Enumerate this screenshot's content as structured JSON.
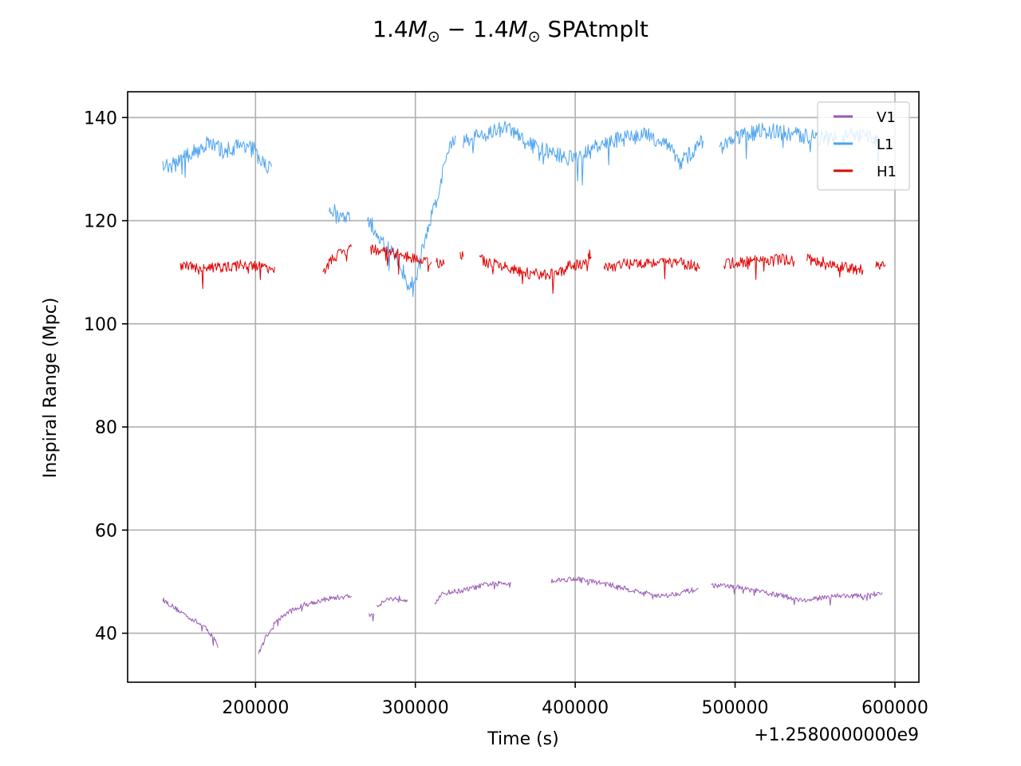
{
  "chart_data": {
    "type": "line",
    "title": {
      "lead": "1.4",
      "m1": "M",
      "sun1": "⊙",
      "dash": " − 1.4",
      "m2": "M",
      "sun2": "⊙",
      "suffix": " SPAtmplt"
    },
    "xlabel": "Time (s)",
    "ylabel": "Inspiral Range (Mpc)",
    "x_offset_label": "+1.2580000000e9",
    "xlim": [
      120000,
      615000
    ],
    "ylim": [
      30.5,
      145
    ],
    "x_ticks": [
      200000,
      300000,
      400000,
      500000,
      600000
    ],
    "x_tick_labels": [
      "200000",
      "300000",
      "400000",
      "500000",
      "600000"
    ],
    "y_ticks": [
      40,
      60,
      80,
      100,
      120,
      140
    ],
    "y_tick_labels": [
      "40",
      "60",
      "80",
      "100",
      "120",
      "140"
    ],
    "grid": true,
    "legend_position": "upper right",
    "series": [
      {
        "name": "V1",
        "color": "#9b59b6",
        "noise": 0.5,
        "segments": [
          [
            [
              142000,
              46.5
            ],
            [
              150000,
              44.8
            ],
            [
              160000,
              42.8
            ],
            [
              168000,
              41.2
            ],
            [
              175000,
              38.8
            ],
            [
              176500,
              37.2
            ]
          ],
          [
            [
              202000,
              36
            ],
            [
              206000,
              39
            ],
            [
              212000,
              42
            ],
            [
              220000,
              44
            ],
            [
              230000,
              45.5
            ],
            [
              245000,
              46.7
            ],
            [
              260000,
              47.2
            ]
          ],
          [
            [
              271000,
              43.5
            ],
            [
              274000,
              43.8
            ]
          ],
          [
            [
              276000,
              45.3
            ],
            [
              282000,
              46.6
            ],
            [
              290000,
              46.8
            ],
            [
              295000,
              46.5
            ]
          ],
          [
            [
              312000,
              46
            ],
            [
              318000,
              47.8
            ],
            [
              330000,
              48.3
            ],
            [
              345000,
              49.5
            ],
            [
              360000,
              49.8
            ]
          ],
          [
            [
              385000,
              50.2
            ],
            [
              400000,
              50.6
            ],
            [
              420000,
              49.5
            ],
            [
              440000,
              48
            ],
            [
              455000,
              47.2
            ],
            [
              465000,
              47.8
            ],
            [
              477000,
              48.6
            ]
          ],
          [
            [
              485000,
              49.3
            ],
            [
              500000,
              49
            ],
            [
              520000,
              47.8
            ],
            [
              545000,
              46.3
            ],
            [
              560000,
              47.3
            ],
            [
              580000,
              47.2
            ],
            [
              592000,
              47.9
            ]
          ]
        ]
      },
      {
        "name": "L1",
        "color": "#4da3ee",
        "noise": 1.6,
        "segments": [
          [
            [
              142000,
              130
            ],
            [
              150000,
              131
            ],
            [
              160000,
              133
            ],
            [
              170000,
              135
            ],
            [
              180000,
              133.5
            ],
            [
              190000,
              134.5
            ],
            [
              197000,
              135
            ],
            [
              203000,
              131
            ],
            [
              210000,
              130.5
            ]
          ],
          [
            [
              246000,
              122.5
            ],
            [
              252000,
              121
            ],
            [
              259000,
              120
            ]
          ],
          [
            [
              270000,
              120.5
            ],
            [
              280000,
              115.5
            ],
            [
              290000,
              112
            ],
            [
              296000,
              107
            ],
            [
              300000,
              108.5
            ],
            [
              305000,
              115
            ],
            [
              310000,
              121
            ],
            [
              315000,
              126
            ],
            [
              320000,
              133
            ],
            [
              325000,
              136.5
            ]
          ],
          [
            [
              330000,
              135.5
            ],
            [
              345000,
              137
            ],
            [
              358000,
              138
            ],
            [
              370000,
              135
            ],
            [
              385000,
              133
            ],
            [
              400000,
              132
            ],
            [
              415000,
              134.5
            ],
            [
              430000,
              136
            ],
            [
              445000,
              136.5
            ],
            [
              458000,
              135
            ],
            [
              465000,
              131
            ],
            [
              472000,
              133
            ],
            [
              480000,
              135.5
            ]
          ],
          [
            [
              490000,
              134
            ],
            [
              500000,
              136
            ],
            [
              510000,
              137
            ],
            [
              520000,
              137.5
            ],
            [
              540000,
              136.5
            ],
            [
              560000,
              136
            ],
            [
              575000,
              136.5
            ],
            [
              590000,
              135.5
            ]
          ]
        ]
      },
      {
        "name": "H1",
        "color": "#e00000",
        "noise": 1.1,
        "segments": [
          [
            [
              153000,
              111.5
            ],
            [
              165000,
              110.5
            ],
            [
              180000,
              111
            ],
            [
              195000,
              111.5
            ],
            [
              206000,
              110.8
            ],
            [
              212000,
              111
            ]
          ],
          [
            [
              242000,
              110
            ],
            [
              248000,
              112.5
            ],
            [
              255000,
              114
            ],
            [
              260000,
              115
            ]
          ],
          [
            [
              272000,
              114.5
            ],
            [
              282000,
              114
            ],
            [
              290000,
              113.5
            ],
            [
              300000,
              112.5
            ],
            [
              310000,
              112
            ]
          ],
          [
            [
              313000,
              112
            ],
            [
              318000,
              111.5
            ]
          ],
          [
            [
              328000,
              114
            ],
            [
              330000,
              113
            ]
          ],
          [
            [
              340000,
              112.5
            ],
            [
              350000,
              111.5
            ],
            [
              360000,
              110.5
            ],
            [
              370000,
              109.8
            ],
            [
              380000,
              109.5
            ],
            [
              390000,
              109.6
            ],
            [
              397000,
              111.5
            ],
            [
              403000,
              111.5
            ],
            [
              409000,
              113
            ]
          ],
          [
            [
              408000,
              113.5
            ],
            [
              410000,
              113
            ]
          ],
          [
            [
              418000,
              111
            ],
            [
              430000,
              111.5
            ],
            [
              445000,
              112
            ],
            [
              460000,
              112
            ],
            [
              470000,
              111.5
            ],
            [
              478000,
              111
            ]
          ],
          [
            [
              493000,
              111.5
            ],
            [
              505000,
              112
            ],
            [
              520000,
              112.5
            ],
            [
              530000,
              112.5
            ],
            [
              537000,
              112.2
            ]
          ],
          [
            [
              545000,
              112.5
            ],
            [
              555000,
              112
            ],
            [
              570000,
              110.8
            ],
            [
              580000,
              110.5
            ]
          ],
          [
            [
              588000,
              111.5
            ],
            [
              594000,
              111.5
            ]
          ]
        ]
      }
    ]
  }
}
